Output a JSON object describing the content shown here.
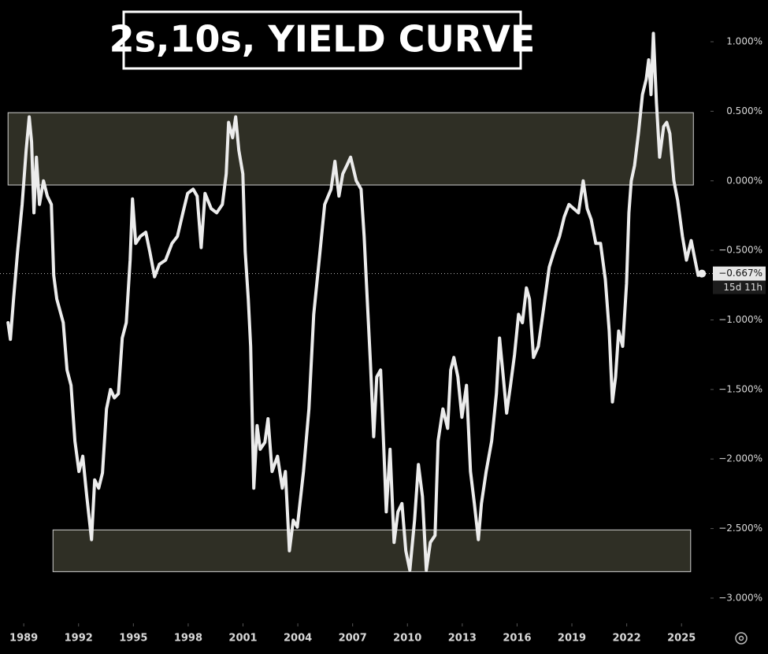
{
  "chart_data": {
    "type": "line",
    "title": "2s,10s, YIELD CURVE",
    "xlim": [
      1987.7,
      2026.5
    ],
    "ylim": [
      -3.17,
      1.3
    ],
    "xticks": [
      1989,
      1992,
      1995,
      1998,
      2001,
      2004,
      2007,
      2010,
      2013,
      2016,
      2019,
      2022,
      2025
    ],
    "yticks": [
      {
        "value": 1,
        "label": "1.000%"
      },
      {
        "value": 0.5,
        "label": "0.500%"
      },
      {
        "value": 0,
        "label": "0.000%"
      },
      {
        "value": -0.5,
        "label": "−0.500%"
      },
      {
        "value": -1,
        "label": "−1.000%"
      },
      {
        "value": -1.5,
        "label": "−1.500%"
      },
      {
        "value": -2,
        "label": "−2.000%"
      },
      {
        "value": -2.5,
        "label": "−2.500%"
      },
      {
        "value": -3,
        "label": "−3.000%"
      }
    ],
    "last_value": {
      "value": -0.667,
      "label": "−0.667%"
    },
    "countdown": "15d 11h",
    "zones": [
      {
        "x": [
          1988.14,
          2025.65
        ],
        "y": [
          -0.03,
          0.49
        ]
      },
      {
        "x": [
          1990.6,
          2025.5
        ],
        "y": [
          -2.81,
          -2.51
        ]
      }
    ],
    "series": [
      {
        "color": "#ececec",
        "x": [
          1988.14,
          1988.27,
          1988.44,
          1988.66,
          1988.91,
          1989.13,
          1989.3,
          1989.43,
          1989.56,
          1989.69,
          1989.86,
          1990.08,
          1990.29,
          1990.51,
          1990.64,
          1990.81,
          1991.16,
          1991.37,
          1991.59,
          1991.8,
          1992.02,
          1992.23,
          1992.45,
          1992.71,
          1992.88,
          1993.1,
          1993.31,
          1993.53,
          1993.75,
          1993.96,
          1994.18,
          1994.39,
          1994.61,
          1994.82,
          1994.95,
          1995.13,
          1995.38,
          1995.68,
          1995.9,
          1996.16,
          1996.42,
          1996.76,
          1997.11,
          1997.41,
          1997.71,
          1997.97,
          1998.27,
          1998.49,
          1998.71,
          1998.92,
          1999.26,
          1999.56,
          1999.87,
          2000.08,
          2000.21,
          2000.43,
          2000.6,
          2000.77,
          2000.99,
          2001.12,
          2001.29,
          2001.42,
          2001.59,
          2001.77,
          2001.94,
          2002.2,
          2002.37,
          2002.59,
          2002.89,
          2003.15,
          2003.32,
          2003.54,
          2003.75,
          2003.97,
          2004.31,
          2004.61,
          2004.87,
          2005.17,
          2005.47,
          2005.82,
          2006.03,
          2006.25,
          2006.46,
          2006.68,
          2006.89,
          2007.2,
          2007.46,
          2007.63,
          2007.8,
          2007.97,
          2008.15,
          2008.32,
          2008.53,
          2008.71,
          2008.84,
          2009.05,
          2009.27,
          2009.48,
          2009.7,
          2009.91,
          2010.13,
          2010.39,
          2010.6,
          2010.82,
          2011.03,
          2011.25,
          2011.51,
          2011.68,
          2011.94,
          2012.2,
          2012.37,
          2012.54,
          2012.76,
          2012.98,
          2013.23,
          2013.45,
          2013.66,
          2013.88,
          2014.05,
          2014.31,
          2014.61,
          2014.87,
          2015.04,
          2015.21,
          2015.43,
          2015.64,
          2015.86,
          2016.08,
          2016.29,
          2016.51,
          2016.68,
          2016.9,
          2017.16,
          2017.46,
          2017.76,
          2018.02,
          2018.32,
          2018.58,
          2018.84,
          2019.1,
          2019.36,
          2019.62,
          2019.84,
          2020.06,
          2020.31,
          2020.57,
          2020.83,
          2021.04,
          2021.22,
          2021.39,
          2021.56,
          2021.78,
          2021.99,
          2022.12,
          2022.25,
          2022.43,
          2022.64,
          2022.86,
          2023.07,
          2023.2,
          2023.33,
          2023.46,
          2023.63,
          2023.8,
          2024.02,
          2024.19,
          2024.36,
          2024.58,
          2024.79,
          2025.05,
          2025.27,
          2025.53,
          2025.74,
          2025.91,
          2026.12
        ],
        "values": [
          -1.02,
          -1.14,
          -0.85,
          -0.51,
          -0.17,
          0.22,
          0.46,
          0.28,
          -0.23,
          0.17,
          -0.17,
          0,
          -0.11,
          -0.17,
          -0.68,
          -0.85,
          -1.02,
          -1.36,
          -1.47,
          -1.87,
          -2.09,
          -1.98,
          -2.27,
          -2.58,
          -2.15,
          -2.21,
          -2.1,
          -1.64,
          -1.5,
          -1.56,
          -1.53,
          -1.13,
          -1.02,
          -0.57,
          -0.13,
          -0.45,
          -0.4,
          -0.37,
          -0.51,
          -0.69,
          -0.6,
          -0.57,
          -0.45,
          -0.4,
          -0.23,
          -0.09,
          -0.06,
          -0.11,
          -0.48,
          -0.09,
          -0.2,
          -0.23,
          -0.17,
          0.05,
          0.42,
          0.31,
          0.46,
          0.22,
          0.05,
          -0.51,
          -0.85,
          -1.19,
          -2.21,
          -1.76,
          -1.93,
          -1.88,
          -1.71,
          -2.09,
          -1.98,
          -2.21,
          -2.09,
          -2.66,
          -2.44,
          -2.49,
          -2.09,
          -1.64,
          -0.96,
          -0.57,
          -0.17,
          -0.06,
          0.14,
          -0.11,
          0.05,
          0.11,
          0.17,
          0,
          -0.06,
          -0.4,
          -0.85,
          -1.3,
          -1.84,
          -1.41,
          -1.36,
          -1.93,
          -2.38,
          -1.93,
          -2.6,
          -2.38,
          -2.32,
          -2.66,
          -2.8,
          -2.44,
          -2.04,
          -2.27,
          -2.8,
          -2.6,
          -2.55,
          -1.87,
          -1.64,
          -1.78,
          -1.36,
          -1.27,
          -1.41,
          -1.7,
          -1.47,
          -2.09,
          -2.32,
          -2.58,
          -2.32,
          -2.09,
          -1.87,
          -1.53,
          -1.13,
          -1.36,
          -1.67,
          -1.47,
          -1.25,
          -0.96,
          -1.02,
          -0.77,
          -0.85,
          -1.27,
          -1.19,
          -0.91,
          -0.62,
          -0.51,
          -0.4,
          -0.26,
          -0.17,
          -0.2,
          -0.23,
          0,
          -0.2,
          -0.28,
          -0.45,
          -0.45,
          -0.71,
          -1.08,
          -1.59,
          -1.41,
          -1.08,
          -1.19,
          -0.74,
          -0.23,
          0,
          0.11,
          0.34,
          0.62,
          0.73,
          0.87,
          0.62,
          1.06,
          0.56,
          0.17,
          0.39,
          0.42,
          0.34,
          0,
          -0.14,
          -0.4,
          -0.57,
          -0.43,
          -0.57,
          -0.68,
          -0.667
        ]
      }
    ]
  }
}
